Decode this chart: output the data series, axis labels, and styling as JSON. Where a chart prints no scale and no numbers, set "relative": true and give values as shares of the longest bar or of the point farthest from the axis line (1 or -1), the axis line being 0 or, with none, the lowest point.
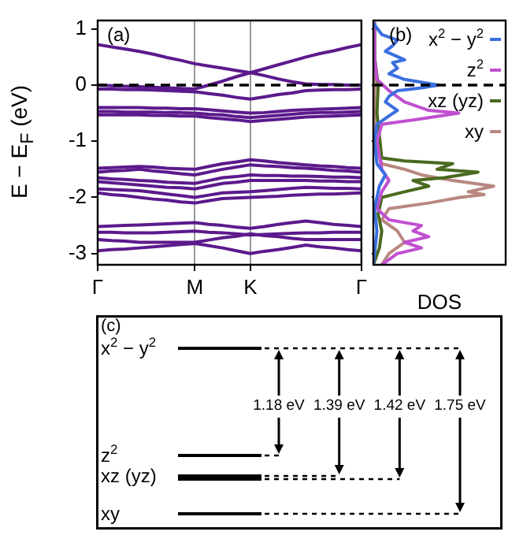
{
  "chart_data": [
    {
      "type": "line",
      "ylabel": "E − E$_{F}$ (eV)",
      "annotations": [
        "(a)"
      ],
      "color": "#5c1a8c",
      "legend": false,
      "grid": "x",
      "line_style": "solid",
      "marker": "none",
      "categories": [
        "Γ",
        null,
        null,
        null,
        null,
        null,
        null,
        "M",
        null,
        null,
        null,
        "K",
        null,
        null,
        null,
        null,
        null,
        null,
        null,
        "Γ"
      ],
      "ylim": [
        -3.2,
        1.15
      ],
      "yticks": [
        -3,
        -2,
        -1,
        0,
        1
      ],
      "ref_lines": [
        {
          "axis": "y",
          "value": 0,
          "line_style": "dashed",
          "color": "#000000"
        }
      ],
      "series": [
        {
          "values": [
            0.72,
            0.68,
            0.64,
            0.6,
            0.55,
            0.49,
            0.44,
            0.38,
            0.34,
            0.3,
            0.26,
            0.22,
            0.29,
            0.36,
            0.43,
            0.5,
            0.56,
            0.61,
            0.67,
            0.72
          ]
        },
        {
          "values": [
            0.0,
            -0.01,
            -0.02,
            -0.03,
            -0.04,
            -0.05,
            -0.06,
            -0.07,
            0.0,
            0.07,
            0.15,
            0.22,
            0.17,
            0.11,
            0.06,
            0.02,
            0.01,
            0.01,
            0.0,
            0.0
          ]
        },
        {
          "values": [
            -0.07,
            -0.07,
            -0.08,
            -0.08,
            -0.09,
            -0.1,
            -0.11,
            -0.12,
            -0.15,
            -0.18,
            -0.22,
            -0.25,
            -0.21,
            -0.17,
            -0.14,
            -0.1,
            -0.09,
            -0.08,
            -0.08,
            -0.07
          ]
        },
        {
          "values": [
            -0.4,
            -0.4,
            -0.4,
            -0.4,
            -0.41,
            -0.41,
            -0.42,
            -0.42,
            -0.44,
            -0.46,
            -0.48,
            -0.5,
            -0.49,
            -0.47,
            -0.45,
            -0.44,
            -0.43,
            -0.42,
            -0.41,
            -0.4
          ]
        },
        {
          "values": [
            -0.47,
            -0.47,
            -0.48,
            -0.48,
            -0.48,
            -0.49,
            -0.49,
            -0.5,
            -0.52,
            -0.53,
            -0.56,
            -0.58,
            -0.56,
            -0.54,
            -0.52,
            -0.5,
            -0.49,
            -0.49,
            -0.48,
            -0.47
          ]
        },
        {
          "values": [
            -0.53,
            -0.53,
            -0.53,
            -0.53,
            -0.54,
            -0.54,
            -0.55,
            -0.55,
            -0.58,
            -0.6,
            -0.62,
            -0.65,
            -0.63,
            -0.61,
            -0.59,
            -0.57,
            -0.56,
            -0.55,
            -0.54,
            -0.53
          ]
        },
        {
          "values": [
            -1.48,
            -1.47,
            -1.46,
            -1.45,
            -1.46,
            -1.48,
            -1.49,
            -1.5,
            -1.45,
            -1.4,
            -1.37,
            -1.33,
            -1.35,
            -1.38,
            -1.4,
            -1.42,
            -1.44,
            -1.45,
            -1.47,
            -1.48
          ]
        },
        {
          "values": [
            -1.55,
            -1.53,
            -1.52,
            -1.5,
            -1.53,
            -1.55,
            -1.58,
            -1.6,
            -1.55,
            -1.5,
            -1.46,
            -1.42,
            -1.44,
            -1.45,
            -1.47,
            -1.48,
            -1.5,
            -1.52,
            -1.53,
            -1.55
          ]
        },
        {
          "values": [
            -1.65,
            -1.67,
            -1.68,
            -1.7,
            -1.71,
            -1.73,
            -1.74,
            -1.75,
            -1.7,
            -1.65,
            -1.63,
            -1.6,
            -1.61,
            -1.61,
            -1.62,
            -1.62,
            -1.63,
            -1.64,
            -1.64,
            -1.65
          ]
        },
        {
          "values": [
            -1.72,
            -1.74,
            -1.76,
            -1.78,
            -1.8,
            -1.82,
            -1.83,
            -1.85,
            -1.8,
            -1.75,
            -1.73,
            -1.7,
            -1.7,
            -1.7,
            -1.7,
            -1.7,
            -1.71,
            -1.71,
            -1.72,
            -1.72
          ]
        },
        {
          "values": [
            -1.85,
            -1.86,
            -1.87,
            -1.88,
            -1.91,
            -1.94,
            -1.97,
            -2.0,
            -1.96,
            -1.92,
            -1.91,
            -1.9,
            -1.88,
            -1.86,
            -1.84,
            -1.82,
            -1.83,
            -1.84,
            -1.84,
            -1.85
          ]
        },
        {
          "values": [
            -1.92,
            -1.95,
            -1.97,
            -2.0,
            -2.03,
            -2.05,
            -2.08,
            -2.1,
            -2.06,
            -2.02,
            -2.01,
            -2.0,
            -1.99,
            -1.98,
            -1.96,
            -1.95,
            -1.94,
            -1.94,
            -1.93,
            -1.92
          ]
        },
        {
          "values": [
            -2.52,
            -2.51,
            -2.5,
            -2.49,
            -2.48,
            -2.47,
            -2.46,
            -2.45,
            -2.48,
            -2.5,
            -2.53,
            -2.55,
            -2.52,
            -2.48,
            -2.45,
            -2.42,
            -2.45,
            -2.48,
            -2.5,
            -2.52
          ]
        },
        {
          "values": [
            -2.62,
            -2.62,
            -2.63,
            -2.63,
            -2.63,
            -2.62,
            -2.61,
            -2.6,
            -2.62,
            -2.63,
            -2.65,
            -2.67,
            -2.66,
            -2.65,
            -2.64,
            -2.63,
            -2.63,
            -2.62,
            -2.62,
            -2.62
          ]
        },
        {
          "values": [
            -2.75,
            -2.77,
            -2.78,
            -2.8,
            -2.8,
            -2.8,
            -2.8,
            -2.8,
            -2.76,
            -2.72,
            -2.69,
            -2.65,
            -2.68,
            -2.7,
            -2.73,
            -2.75,
            -2.75,
            -2.75,
            -2.75,
            -2.75
          ]
        },
        {
          "values": [
            -2.95,
            -2.93,
            -2.92,
            -2.9,
            -2.88,
            -2.86,
            -2.84,
            -2.82,
            -2.86,
            -2.9,
            -2.95,
            -3.0,
            -2.96,
            -2.93,
            -2.89,
            -2.85,
            -2.88,
            -2.9,
            -2.93,
            -2.95
          ]
        }
      ]
    },
    {
      "type": "line",
      "xlabel": "DOS",
      "annotations": [
        "(b)"
      ],
      "relative": true,
      "orientation": "horizontal",
      "legend": "top right",
      "tick_labels": false,
      "grid": false,
      "marker": "none",
      "ylim": [
        -3.2,
        1.15
      ],
      "yticks": [
        -3,
        -2,
        -1,
        0,
        1
      ],
      "ref_lines": [
        {
          "axis": "y",
          "value": 0,
          "line_style": "dashed",
          "color": "#000000"
        }
      ],
      "series": [
        {
          "name": "x$^{2}$ − y$^{2}$",
          "color": "#3a6fe0",
          "x": [
            1.1,
            0.9,
            0.8,
            0.7,
            0.6,
            0.45,
            0.4,
            0.3,
            0.2,
            0.1,
            0.0,
            -0.05,
            -0.1,
            -0.2,
            -0.3,
            -0.45,
            -0.55,
            -0.7,
            -1.0,
            -1.4,
            -1.6,
            -1.8,
            -2.2,
            -2.6,
            -3.0,
            -3.2
          ],
          "values": [
            0,
            0.07,
            0.2,
            0.16,
            0.1,
            0.26,
            0.16,
            0.2,
            0.13,
            0.26,
            0.54,
            0.4,
            0.2,
            0.13,
            0.1,
            0.2,
            0.13,
            0.03,
            0.01,
            0.03,
            0.1,
            0.05,
            0.01,
            0.03,
            0.01,
            0
          ]
        },
        {
          "name": "z$^{2}$",
          "color": "#c050d0",
          "x": [
            1.1,
            0.5,
            0.1,
            -0.1,
            -0.3,
            -0.45,
            -0.5,
            -0.6,
            -0.7,
            -1.0,
            -1.5,
            -1.7,
            -1.9,
            -2.2,
            -2.4,
            -2.5,
            -2.6,
            -2.7,
            -2.8,
            -2.9,
            -3.0,
            -3.2
          ],
          "values": [
            0,
            0.01,
            0.03,
            0.13,
            0.26,
            0.46,
            0.71,
            0.4,
            0.07,
            0.03,
            0.07,
            0.13,
            0.07,
            0.03,
            0.13,
            0.4,
            0.33,
            0.46,
            0.26,
            0.4,
            0.2,
            0.07
          ]
        },
        {
          "name": "xz (yz)",
          "color": "#4a6a20",
          "x": [
            1.1,
            0.5,
            0.0,
            -0.5,
            -1.3,
            -1.35,
            -1.4,
            -1.5,
            -1.55,
            -1.65,
            -1.7,
            -1.8,
            -1.9,
            -2.0,
            -2.3,
            -2.6,
            -2.9,
            -3.2
          ],
          "values": [
            0,
            0.01,
            0.04,
            0.03,
            0.07,
            0.26,
            0.66,
            0.53,
            0.87,
            0.59,
            0.33,
            0.46,
            0.26,
            0.07,
            0.04,
            0.07,
            0.05,
            0
          ]
        },
        {
          "name": "xy",
          "color": "#b88880",
          "x": [
            1.1,
            0.0,
            -1.0,
            -1.4,
            -1.5,
            -1.6,
            -1.7,
            -1.8,
            -1.9,
            -1.95,
            -2.0,
            -2.1,
            -2.2,
            -2.4,
            -2.6,
            -2.8,
            -3.0,
            -3.2
          ],
          "values": [
            0,
            0.01,
            0.01,
            0.07,
            0.26,
            0.4,
            0.66,
            1.0,
            0.79,
            0.92,
            0.72,
            0.46,
            0.13,
            0.07,
            0.2,
            0.26,
            0.13,
            0.07
          ]
        }
      ]
    },
    {
      "type": "other",
      "categories": [
        "x$^{2}$ − y$^{2}$",
        "z$^{2}$",
        "xz (yz)",
        null,
        "xy"
      ],
      "annotations": [
        "(c)",
        "1.18 eV",
        "1.39 eV",
        "1.42 eV",
        "1.75 eV"
      ]
    }
  ]
}
